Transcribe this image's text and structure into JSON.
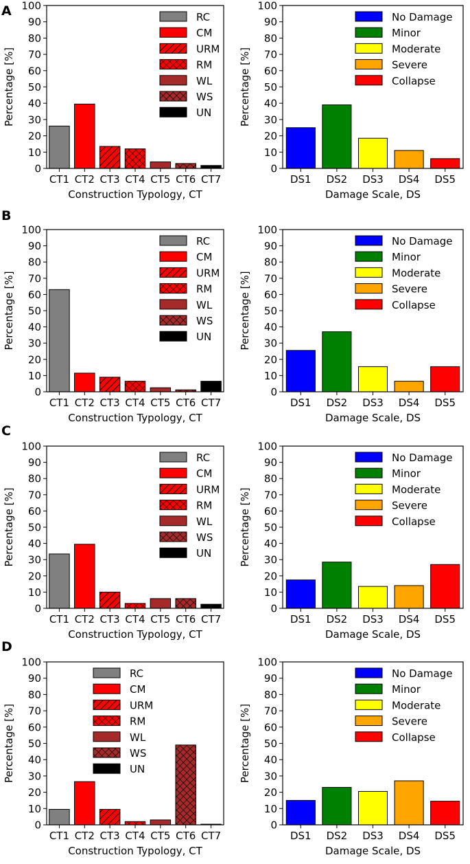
{
  "chart_data": [
    {
      "panel": "A",
      "type": "bar",
      "categories": [
        "CT1",
        "CT2",
        "CT3",
        "CT4",
        "CT5",
        "CT6",
        "CT7"
      ],
      "values": [
        26,
        39.5,
        13.5,
        12,
        4,
        3,
        1.8
      ],
      "styles": [
        "RC",
        "CM",
        "URM",
        "RM",
        "WL",
        "WS",
        "UN"
      ],
      "xlabel": "Construction Typology, CT",
      "ylabel": "Percentage [%]",
      "ylim": [
        0,
        100
      ],
      "yticks": [
        0,
        10,
        20,
        30,
        40,
        50,
        60,
        70,
        80,
        90,
        100
      ],
      "legend": [
        "RC",
        "CM",
        "URM",
        "RM",
        "WL",
        "WS",
        "UN"
      ],
      "legend_position": "top-right"
    },
    {
      "panel": "A",
      "type": "bar",
      "categories": [
        "DS1",
        "DS2",
        "DS3",
        "DS4",
        "DS5"
      ],
      "values": [
        25,
        39,
        18.5,
        11,
        6
      ],
      "styles": [
        "ND",
        "MI",
        "MO",
        "SE",
        "CO"
      ],
      "xlabel": "Damage Scale, DS",
      "ylabel": "Percentage [%]",
      "ylim": [
        0,
        100
      ],
      "yticks": [
        0,
        10,
        20,
        30,
        40,
        50,
        60,
        70,
        80,
        90,
        100
      ],
      "legend": [
        "No Damage",
        "Minor",
        "Moderate",
        "Severe",
        "Collapse"
      ],
      "legend_position": "top-right"
    },
    {
      "panel": "B",
      "type": "bar",
      "categories": [
        "CT1",
        "CT2",
        "CT3",
        "CT4",
        "CT5",
        "CT6",
        "CT7"
      ],
      "values": [
        63,
        11.5,
        9,
        6.5,
        2.5,
        1.2,
        6.5
      ],
      "styles": [
        "RC",
        "CM",
        "URM",
        "RM",
        "WL",
        "WS",
        "UN"
      ],
      "xlabel": "Construction Typology, CT",
      "ylabel": "Percentage [%]",
      "ylim": [
        0,
        100
      ],
      "yticks": [
        0,
        10,
        20,
        30,
        40,
        50,
        60,
        70,
        80,
        90,
        100
      ],
      "legend": [
        "RC",
        "CM",
        "URM",
        "RM",
        "WL",
        "WS",
        "UN"
      ],
      "legend_position": "top-right"
    },
    {
      "panel": "B",
      "type": "bar",
      "categories": [
        "DS1",
        "DS2",
        "DS3",
        "DS4",
        "DS5"
      ],
      "values": [
        25.5,
        37,
        15.5,
        6.5,
        15.5
      ],
      "styles": [
        "ND",
        "MI",
        "MO",
        "SE",
        "CO"
      ],
      "xlabel": "Damage Scale, DS",
      "ylabel": "Percentage [%]",
      "ylim": [
        0,
        100
      ],
      "yticks": [
        0,
        10,
        20,
        30,
        40,
        50,
        60,
        70,
        80,
        90,
        100
      ],
      "legend": [
        "No Damage",
        "Minor",
        "Moderate",
        "Severe",
        "Collapse"
      ],
      "legend_position": "top-right"
    },
    {
      "panel": "C",
      "type": "bar",
      "categories": [
        "CT1",
        "CT2",
        "CT3",
        "CT4",
        "CT5",
        "CT6",
        "CT7"
      ],
      "values": [
        33.5,
        39.5,
        10,
        3,
        6,
        6,
        2.5
      ],
      "styles": [
        "RC",
        "CM",
        "URM",
        "RM",
        "WL",
        "WS",
        "UN"
      ],
      "xlabel": "Construction Typology, CT",
      "ylabel": "Percentage [%]",
      "ylim": [
        0,
        100
      ],
      "yticks": [
        0,
        10,
        20,
        30,
        40,
        50,
        60,
        70,
        80,
        90,
        100
      ],
      "legend": [
        "RC",
        "CM",
        "URM",
        "RM",
        "WL",
        "WS",
        "UN"
      ],
      "legend_position": "top-right"
    },
    {
      "panel": "C",
      "type": "bar",
      "categories": [
        "DS1",
        "DS2",
        "DS3",
        "DS4",
        "DS5"
      ],
      "values": [
        17.5,
        28.5,
        13.5,
        14,
        27
      ],
      "styles": [
        "ND",
        "MI",
        "MO",
        "SE",
        "CO"
      ],
      "xlabel": "Damage Scale, DS",
      "ylabel": "Percentage [%]",
      "ylim": [
        0,
        100
      ],
      "yticks": [
        0,
        10,
        20,
        30,
        40,
        50,
        60,
        70,
        80,
        90,
        100
      ],
      "legend": [
        "No Damage",
        "Minor",
        "Moderate",
        "Severe",
        "Collapse"
      ],
      "legend_position": "top-right"
    },
    {
      "panel": "D",
      "type": "bar",
      "categories": [
        "CT1",
        "CT2",
        "CT3",
        "CT4",
        "CT5",
        "CT6",
        "CT7"
      ],
      "values": [
        9.5,
        26.5,
        9.5,
        2,
        3,
        49,
        0.4
      ],
      "styles": [
        "RC",
        "CM",
        "URM",
        "RM",
        "WL",
        "WS",
        "UN"
      ],
      "xlabel": "Construction Typology, CT",
      "ylabel": "Percentage [%]",
      "ylim": [
        0,
        100
      ],
      "yticks": [
        0,
        10,
        20,
        30,
        40,
        50,
        60,
        70,
        80,
        90,
        100
      ],
      "legend": [
        "RC",
        "CM",
        "URM",
        "RM",
        "WL",
        "WS",
        "UN"
      ],
      "legend_position": "top-center"
    },
    {
      "panel": "D",
      "type": "bar",
      "categories": [
        "DS1",
        "DS2",
        "DS3",
        "DS4",
        "DS5"
      ],
      "values": [
        15,
        23,
        20.5,
        27,
        14.5
      ],
      "styles": [
        "ND",
        "MI",
        "MO",
        "SE",
        "CO"
      ],
      "xlabel": "Damage Scale, DS",
      "ylabel": "Percentage [%]",
      "ylim": [
        0,
        100
      ],
      "yticks": [
        0,
        10,
        20,
        30,
        40,
        50,
        60,
        70,
        80,
        90,
        100
      ],
      "legend": [
        "No Damage",
        "Minor",
        "Moderate",
        "Severe",
        "Collapse"
      ],
      "legend_position": "top-right"
    }
  ],
  "bar_styles": {
    "RC": {
      "color": "#808080",
      "hatch": "none"
    },
    "CM": {
      "color": "#ff0000",
      "hatch": "none"
    },
    "URM": {
      "color": "#ff0000",
      "hatch": "diagonal"
    },
    "RM": {
      "color": "#ff0000",
      "hatch": "cross"
    },
    "WL": {
      "color": "#a52a2a",
      "hatch": "none"
    },
    "WS": {
      "color": "#a52a2a",
      "hatch": "cross"
    },
    "UN": {
      "color": "#000000",
      "hatch": "none"
    },
    "ND": {
      "color": "#0000ff",
      "hatch": "none"
    },
    "MI": {
      "color": "#008000",
      "hatch": "none"
    },
    "MO": {
      "color": "#ffff00",
      "hatch": "none"
    },
    "SE": {
      "color": "#ffa500",
      "hatch": "none"
    },
    "CO": {
      "color": "#ff0000",
      "hatch": "none"
    }
  }
}
